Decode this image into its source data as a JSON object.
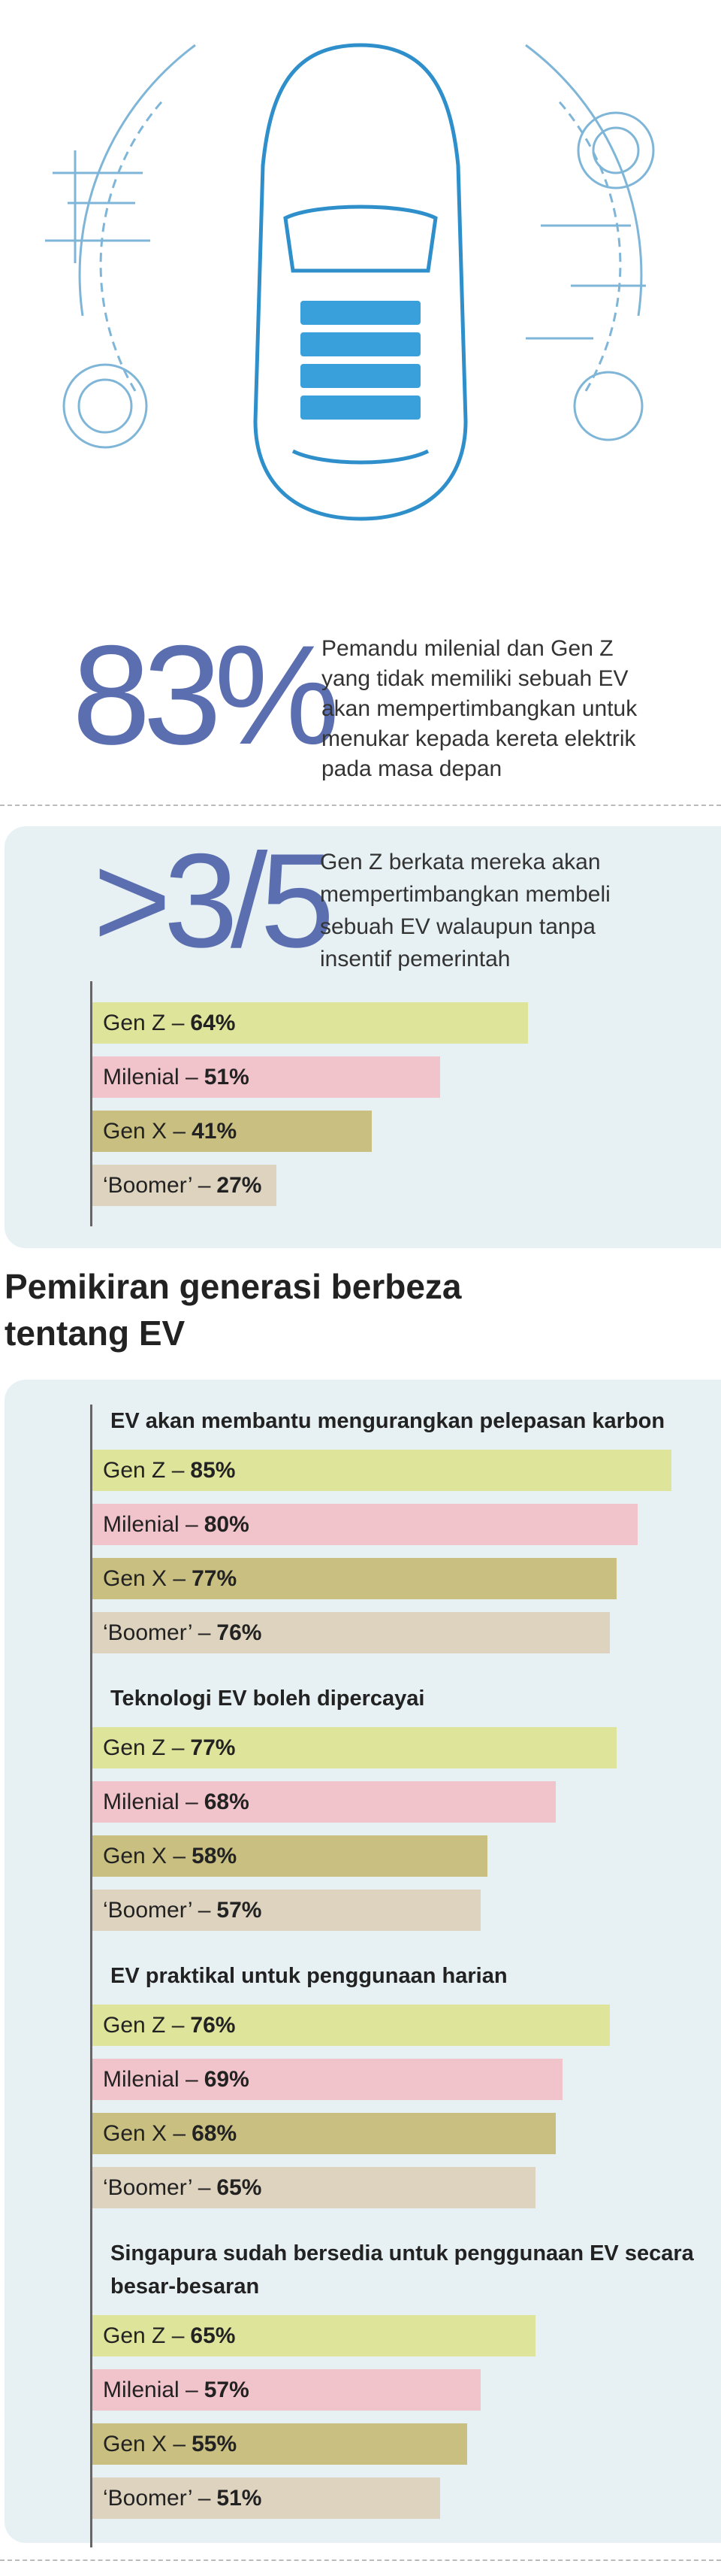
{
  "hero": {
    "stat": "83%",
    "lines": [
      "Pemandu milenial dan Gen Z",
      "yang tidak memiliki sebuah EV",
      "akan mempertimbangkan untuk",
      "menukar kepada kereta elektrik",
      "pada masa depan"
    ]
  },
  "highlight": {
    "stat": ">3/5",
    "lines": [
      "Gen Z berkata mereka akan",
      "mempertimbangkan membeli",
      "sebuah EV walaupun tanpa",
      "insentif pemerintah"
    ]
  },
  "heading": {
    "lines": [
      "Pemikiran generasi berbeza",
      "tentang EV"
    ]
  },
  "chart_data": [
    {
      "type": "bar",
      "categories": [
        "Gen Z –",
        "Milenial –",
        "Gen X –",
        "‘Boomer’ –"
      ],
      "values": [
        64,
        51,
        41,
        27
      ],
      "value_labels": [
        "64%",
        "51%",
        "41%",
        "27%"
      ],
      "colors": [
        "#dfe49b",
        "#f1c3cb",
        "#c8bf80",
        "#ddd3bf"
      ]
    },
    {
      "type": "bar",
      "title": "EV akan membantu mengurangkan pelepasan karbon",
      "categories": [
        "Gen Z –",
        "Milenial –",
        "Gen X –",
        "‘Boomer’ –"
      ],
      "values": [
        85,
        80,
        77,
        76
      ],
      "value_labels": [
        "85%",
        "80%",
        "77%",
        "76%"
      ],
      "colors": [
        "#dfe49b",
        "#f1c3cb",
        "#c8bf80",
        "#ddd3bf"
      ]
    },
    {
      "type": "bar",
      "title": "Teknologi EV boleh dipercayai",
      "categories": [
        "Gen Z –",
        "Milenial –",
        "Gen X –",
        "‘Boomer’ –"
      ],
      "values": [
        77,
        68,
        58,
        57
      ],
      "value_labels": [
        "77%",
        "68%",
        "58%",
        "57%"
      ],
      "colors": [
        "#dfe49b",
        "#f1c3cb",
        "#c8bf80",
        "#ddd3bf"
      ]
    },
    {
      "type": "bar",
      "title": "EV praktikal untuk penggunaan harian",
      "categories": [
        "Gen Z –",
        "Milenial –",
        "Gen X –",
        "‘Boomer’ –"
      ],
      "values": [
        76,
        69,
        68,
        65
      ],
      "value_labels": [
        "76%",
        "69%",
        "68%",
        "65%"
      ],
      "colors": [
        "#dfe49b",
        "#f1c3cb",
        "#c8bf80",
        "#ddd3bf"
      ]
    },
    {
      "type": "bar",
      "title": "Singapura sudah bersedia untuk penggunaan EV secara besar-besaran",
      "categories": [
        "Gen Z –",
        "Milenial –",
        "Gen X –",
        "‘Boomer’ –"
      ],
      "values": [
        65,
        57,
        55,
        51
      ],
      "value_labels": [
        "65%",
        "57%",
        "55%",
        "51%"
      ],
      "colors": [
        "#dfe49b",
        "#f1c3cb",
        "#c8bf80",
        "#ddd3bf"
      ]
    }
  ]
}
